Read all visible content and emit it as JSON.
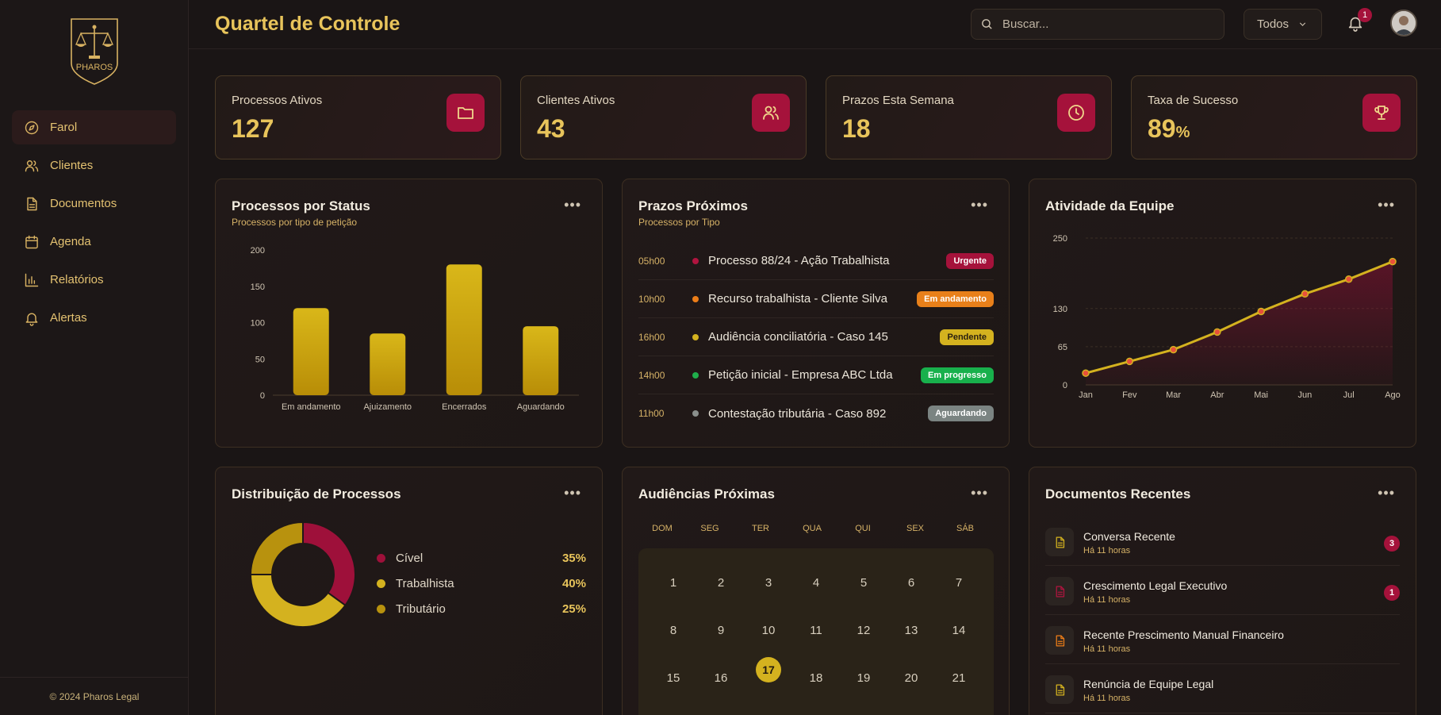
{
  "brand": {
    "name": "PHAROS"
  },
  "sidebar": {
    "items": [
      {
        "label": "Farol",
        "icon": "compass-icon",
        "active": true
      },
      {
        "label": "Clientes",
        "icon": "users-icon"
      },
      {
        "label": "Documentos",
        "icon": "document-icon"
      },
      {
        "label": "Agenda",
        "icon": "calendar-icon"
      },
      {
        "label": "Relatórios",
        "icon": "bar-chart-icon"
      },
      {
        "label": "Alertas",
        "icon": "bell-icon"
      }
    ],
    "footer": "© 2024 Pharos Legal"
  },
  "header": {
    "title": "Quartel de Controle",
    "search_placeholder": "Buscar...",
    "filter_value": "Todos",
    "notifications_count": "1"
  },
  "stats": [
    {
      "label": "Processos Ativos",
      "value": "127",
      "suffix": "",
      "icon": "folder-icon"
    },
    {
      "label": "Clientes Ativos",
      "value": "43",
      "suffix": "",
      "icon": "users-icon"
    },
    {
      "label": "Prazos Esta Semana",
      "value": "18",
      "suffix": "",
      "icon": "clock-icon"
    },
    {
      "label": "Taxa de Sucesso",
      "value": "89",
      "suffix": "%",
      "icon": "trophy-icon"
    }
  ],
  "status_card": {
    "title": "Processos por Status",
    "subtitle": "Processos por tipo de petição"
  },
  "deadlines_card": {
    "title": "Prazos Próximos",
    "subtitle": "Processos por Tipo",
    "items": [
      {
        "time": "05h00",
        "title": "Processo 88/24 - Ação Trabalhista",
        "badge": "Urgente",
        "dot": "#b0143f",
        "badge_bg": "#a5123b",
        "badge_fg": "#ffffff"
      },
      {
        "time": "10h00",
        "title": "Recurso trabalhista - Cliente Silva",
        "badge": "Em andamento",
        "dot": "#ec7d18",
        "badge_bg": "#e8801a",
        "badge_fg": "#ffffff"
      },
      {
        "time": "16h00",
        "title": "Audiência conciliatória - Caso 145",
        "badge": "Pendente",
        "dot": "#d4b21f",
        "badge_bg": "#d4b21f",
        "badge_fg": "#2a2010"
      },
      {
        "time": "14h00",
        "title": "Petição inicial - Empresa ABC Ltda",
        "badge": "Em progresso",
        "dot": "#1fae4b",
        "badge_bg": "#18b04c",
        "badge_fg": "#ffffff"
      },
      {
        "time": "11h00",
        "title": "Contestação tributária - Caso 892",
        "badge": "Aguardando",
        "dot": "#8a8f8c",
        "badge_bg": "#7b8482",
        "badge_fg": "#ffffff"
      }
    ]
  },
  "activity_card": {
    "title": "Atividade da Equipe"
  },
  "distribution_card": {
    "title": "Distribuição de Processos"
  },
  "hearings_card": {
    "title": "Audiências Próximas",
    "weekdays": [
      "DOM",
      "SEG",
      "TER",
      "QUA",
      "QUI",
      "SEX",
      "SÁB"
    ],
    "days": [
      "1",
      "2",
      "3",
      "4",
      "5",
      "6",
      "7",
      "8",
      "9",
      "10",
      "11",
      "12",
      "13",
      "14",
      "15",
      "16",
      "17",
      "18",
      "19",
      "20",
      "21"
    ],
    "today": "17"
  },
  "documents_card": {
    "title": "Documentos Recentes",
    "items": [
      {
        "title": "Conversa Recente",
        "time": "Há 11 horas",
        "badge": "3",
        "icon_color": "#d4b21f"
      },
      {
        "title": "Crescimento Legal Executivo",
        "time": "Há 11 horas",
        "badge": "1",
        "icon_color": "#b0143f"
      },
      {
        "title": "Recente Prescimento Manual Financeiro",
        "time": "Há 11 horas",
        "badge": "",
        "icon_color": "#ec7d18"
      },
      {
        "title": "Renúncia de Equipe Legal",
        "time": "Há 11 horas",
        "badge": "",
        "icon_color": "#d4b21f"
      }
    ]
  },
  "chart_data": [
    {
      "type": "bar",
      "categories": [
        "Em andamento",
        "Ajuizamento",
        "Encerrados",
        "Aguardando"
      ],
      "values": [
        120,
        85,
        180,
        95
      ],
      "ylim": [
        0,
        200
      ],
      "yticks": [
        0,
        50,
        100,
        150,
        200
      ],
      "grid": false,
      "color": "#d4b21f"
    },
    {
      "type": "area",
      "categories": [
        "Jan",
        "Fev",
        "Mar",
        "Abr",
        "Mai",
        "Jun",
        "Jul",
        "Ago"
      ],
      "values": [
        20,
        40,
        60,
        90,
        125,
        155,
        180,
        210
      ],
      "ylim": [
        0,
        250
      ],
      "yticks": [
        0,
        65,
        130,
        250
      ],
      "grid": true,
      "line_color": "#d4b21f",
      "point_color": "#e8503a"
    },
    {
      "type": "pie",
      "labels": [
        "Cível",
        "Trabalhista",
        "Tributário"
      ],
      "values": [
        35,
        40,
        25
      ],
      "display": [
        "35%",
        "40%",
        "25%"
      ],
      "colors": [
        "#9e103a",
        "#d4b21f",
        "#b8920e"
      ],
      "donut": true
    }
  ]
}
